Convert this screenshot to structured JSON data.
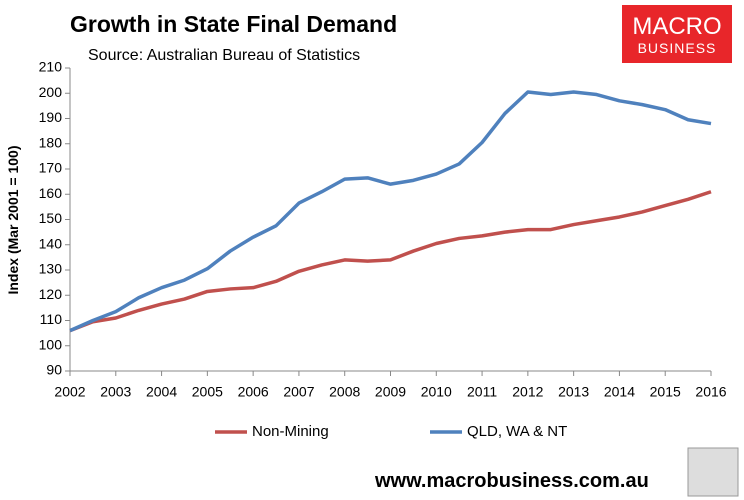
{
  "chart_data": {
    "type": "line",
    "title": "Growth in State Final Demand",
    "subtitle": "Source: Australian Bureau of Statistics",
    "y_label": "Index (Mar 2001 = 100)",
    "x": [
      2002,
      2002.5,
      2003,
      2003.5,
      2004,
      2004.5,
      2005,
      2005.5,
      2006,
      2006.5,
      2007,
      2007.5,
      2008,
      2008.5,
      2009,
      2009.5,
      2010,
      2010.5,
      2011,
      2011.5,
      2012,
      2012.5,
      2013,
      2013.5,
      2014,
      2014.5,
      2015,
      2015.5,
      2016
    ],
    "series": [
      {
        "name": "Non-Mining",
        "color": "#c0504d",
        "values": [
          106,
          109.5,
          111,
          114,
          116.5,
          118.5,
          121.5,
          122.5,
          123,
          125.5,
          129.5,
          132,
          134,
          133.5,
          134,
          137.5,
          140.5,
          142.5,
          143.5,
          145,
          146,
          146,
          148,
          149.5,
          151,
          153,
          155.5,
          158,
          161
        ]
      },
      {
        "name": "QLD, WA & NT",
        "color": "#4f81bd",
        "values": [
          106,
          110,
          113.5,
          119,
          123,
          126,
          130.5,
          137.5,
          143,
          147.5,
          156.5,
          161,
          166,
          166.5,
          164,
          165.5,
          168,
          172,
          180.5,
          192,
          200.5,
          199.5,
          200.5,
          199.5,
          197,
          195.5,
          193.5,
          189.5,
          188
        ]
      }
    ],
    "xlim": [
      2002,
      2016
    ],
    "xticks": [
      2002,
      2003,
      2004,
      2005,
      2006,
      2007,
      2008,
      2009,
      2010,
      2011,
      2012,
      2013,
      2014,
      2015,
      2016
    ],
    "ylim": [
      90,
      210
    ],
    "yticks": [
      90,
      100,
      110,
      120,
      130,
      140,
      150,
      160,
      170,
      180,
      190,
      200,
      210
    ],
    "grid": false,
    "legend": "bottom"
  },
  "logo": {
    "line1": "MACRO",
    "line2": "BUSINESS"
  },
  "footer": "www.macrobusiness.com.au"
}
